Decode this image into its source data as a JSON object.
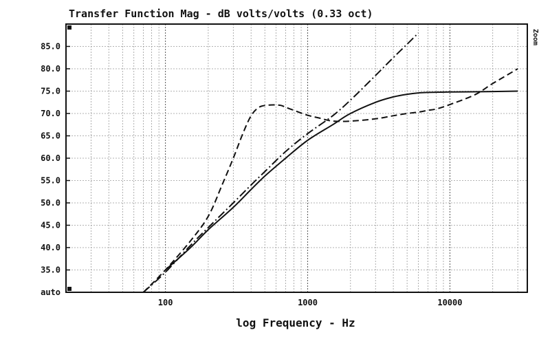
{
  "chart_data": {
    "type": "line",
    "title": "Transfer Function Mag - dB volts/volts (0.33 oct)",
    "xlabel": "log Frequency - Hz",
    "ylabel": "",
    "x_scale": "log",
    "xlim": [
      20,
      35000
    ],
    "ylim": [
      30,
      90
    ],
    "grid": true,
    "x_tick_values": [
      100,
      1000,
      10000
    ],
    "x_ticks": [
      "100",
      "1000",
      "10000"
    ],
    "y_tick_values": [
      30,
      35,
      40,
      45,
      50,
      55,
      60,
      65,
      70,
      75,
      80,
      85
    ],
    "y_ticks": [
      "auto",
      "35.0",
      "40.0",
      "45.0",
      "50.0",
      "55.0",
      "60.0",
      "65.0",
      "70.0",
      "75.0",
      "80.0",
      "85.0"
    ],
    "side_label": "Zoom",
    "series": [
      {
        "style": "solid",
        "x": [
          100,
          150,
          200,
          300,
          400,
          500,
          700,
          1000,
          1500,
          2000,
          3000,
          4000,
          5000,
          6000,
          7000,
          10000,
          20000,
          30000
        ],
        "y": [
          35,
          40,
          44,
          49,
          53,
          56,
          60,
          64,
          67.5,
          70,
          72.5,
          73.7,
          74.3,
          74.6,
          74.7,
          74.8,
          74.9,
          75
        ]
      },
      {
        "style": "dashed",
        "x": [
          70,
          100,
          150,
          200,
          250,
          300,
          350,
          400,
          450,
          500,
          550,
          600,
          650,
          700,
          800,
          1000,
          1200,
          1500,
          2000,
          3000,
          4000,
          5000,
          6000,
          7000,
          8000,
          10000,
          15000,
          20000,
          30000
        ],
        "y": [
          30,
          35,
          41.5,
          47,
          54,
          60,
          65.5,
          69.5,
          71.3,
          71.8,
          71.9,
          71.9,
          71.8,
          71.4,
          70.7,
          69.6,
          69,
          68.3,
          68.3,
          68.8,
          69.5,
          70,
          70.3,
          70.7,
          71,
          72,
          74.2,
          76.7,
          80
        ]
      },
      {
        "style": "dashdot",
        "x": [
          70,
          100,
          150,
          200,
          300,
          400,
          500,
          700,
          1000,
          1500,
          2000,
          3000,
          4000,
          5000,
          6000
        ],
        "y": [
          30,
          34.5,
          40.5,
          44.5,
          50,
          54,
          57,
          61.5,
          65.5,
          69.5,
          73,
          78.5,
          82.5,
          85.5,
          88
        ]
      }
    ]
  }
}
